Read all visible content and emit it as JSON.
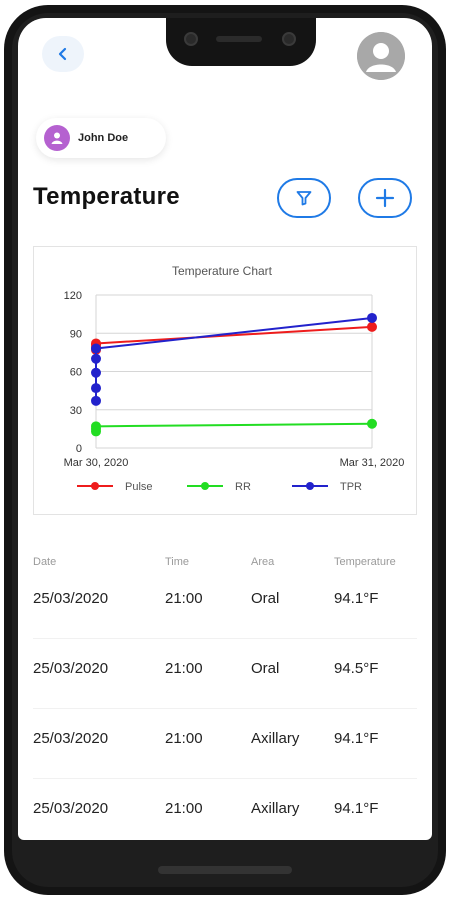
{
  "header": {
    "back_icon": "chevron-left-icon",
    "profile_icon": "user-avatar-icon"
  },
  "user": {
    "name": "John Doe",
    "avatar_color": "#b561d0"
  },
  "page": {
    "title": "Temperature"
  },
  "actions": {
    "filter_icon": "filter-icon",
    "add_icon": "plus-icon",
    "accent_color": "#1f7ae6"
  },
  "chart_data": {
    "type": "line",
    "title": "Temperature Chart",
    "xlabel": "",
    "ylabel": "",
    "x_ticks": [
      "Mar 30, 2020",
      "Mar 31, 2020"
    ],
    "ylim": [
      0,
      120
    ],
    "y_ticks": [
      0,
      30,
      60,
      90,
      120
    ],
    "grid": true,
    "legend_position": "bottom",
    "series": [
      {
        "name": "Pulse",
        "color": "#ee1c1c",
        "points": [
          {
            "x": 0,
            "y": 77
          },
          {
            "x": 0,
            "y": 79
          },
          {
            "x": 0,
            "y": 81
          },
          {
            "x": 0,
            "y": 82
          },
          {
            "x": 1,
            "y": 95
          }
        ]
      },
      {
        "name": "RR",
        "color": "#22dd22",
        "points": [
          {
            "x": 0,
            "y": 13
          },
          {
            "x": 0,
            "y": 15
          },
          {
            "x": 0,
            "y": 17
          },
          {
            "x": 1,
            "y": 19
          }
        ]
      },
      {
        "name": "TPR",
        "color": "#2222cc",
        "points": [
          {
            "x": 0,
            "y": 37
          },
          {
            "x": 0,
            "y": 47
          },
          {
            "x": 0,
            "y": 59
          },
          {
            "x": 0,
            "y": 70
          },
          {
            "x": 0,
            "y": 78
          },
          {
            "x": 1,
            "y": 102
          }
        ]
      }
    ]
  },
  "table": {
    "headers": [
      "Date",
      "Time",
      "Area",
      "Temperature"
    ],
    "rows": [
      [
        "25/03/2020",
        "21:00",
        "Oral",
        "94.1°F"
      ],
      [
        "25/03/2020",
        "21:00",
        "Oral",
        "94.5°F"
      ],
      [
        "25/03/2020",
        "21:00",
        "Axillary",
        "94.1°F"
      ],
      [
        "25/03/2020",
        "21:00",
        "Axillary",
        "94.1°F"
      ]
    ]
  }
}
